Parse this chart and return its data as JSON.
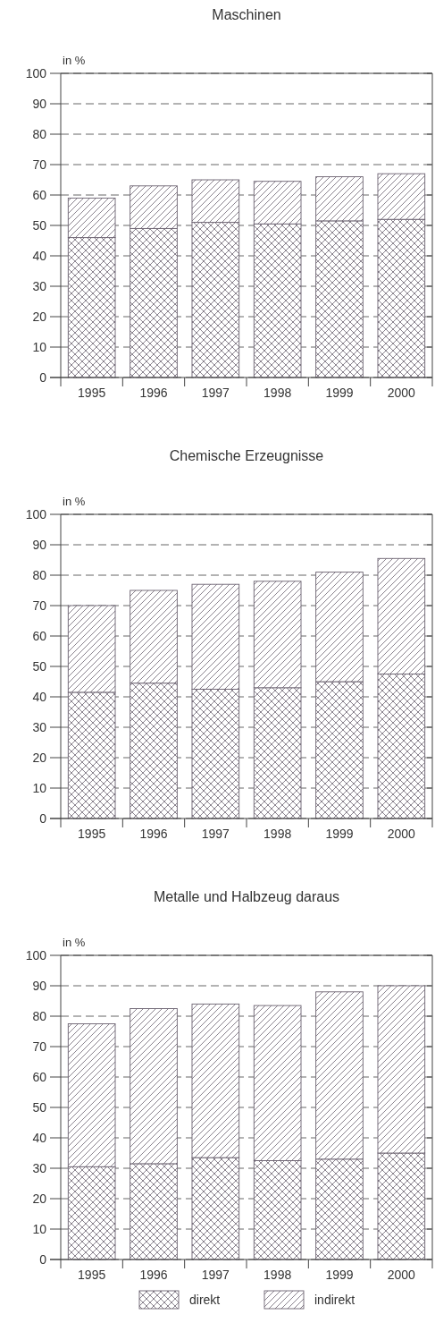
{
  "chart_data": [
    {
      "type": "bar",
      "title": "Maschinen",
      "ylabel": "in %",
      "stacked": true,
      "categories": [
        "1995",
        "1996",
        "1997",
        "1998",
        "1999",
        "2000"
      ],
      "ylim": [
        0,
        100
      ],
      "yticks": [
        0,
        10,
        20,
        30,
        40,
        50,
        60,
        70,
        80,
        90,
        100
      ],
      "grid": "y",
      "legend": false,
      "series": [
        {
          "color": "#6b6270",
          "values": [
            46,
            49,
            51,
            50.5,
            51.5,
            52
          ]
        },
        {
          "color": "#6b6270",
          "values": [
            13,
            14,
            14,
            14,
            14.5,
            15
          ]
        }
      ]
    },
    {
      "type": "bar",
      "title": "Chemische Erzeugnisse",
      "ylabel": "in %",
      "stacked": true,
      "categories": [
        "1995",
        "1996",
        "1997",
        "1998",
        "1999",
        "2000"
      ],
      "ylim": [
        0,
        100
      ],
      "yticks": [
        0,
        10,
        20,
        30,
        40,
        50,
        60,
        70,
        80,
        90,
        100
      ],
      "grid": "y",
      "legend": false,
      "series": [
        {
          "color": "#6b6270",
          "values": [
            41.5,
            44.5,
            42.5,
            43,
            45,
            47.5
          ]
        },
        {
          "color": "#6b6270",
          "values": [
            28.5,
            30.5,
            34.5,
            35,
            36,
            38
          ]
        }
      ]
    },
    {
      "type": "bar",
      "title": "Metalle und Halbzeug daraus",
      "ylabel": "in %",
      "stacked": true,
      "categories": [
        "1995",
        "1996",
        "1997",
        "1998",
        "1999",
        "2000"
      ],
      "ylim": [
        0,
        100
      ],
      "yticks": [
        0,
        10,
        20,
        30,
        40,
        50,
        60,
        70,
        80,
        90,
        100
      ],
      "grid": "y",
      "legend": "bottom",
      "series": [
        {
          "name": "direkt",
          "color": "#6b6270",
          "values": [
            30.5,
            31.5,
            33.5,
            32.5,
            33,
            35
          ]
        },
        {
          "name": "indirekt",
          "color": "#6b6270",
          "values": [
            47,
            51,
            50.5,
            51,
            55,
            55
          ]
        }
      ]
    }
  ]
}
